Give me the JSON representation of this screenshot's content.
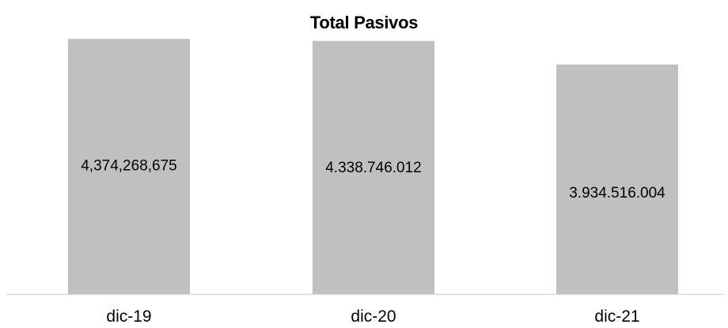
{
  "chart_data": {
    "type": "bar",
    "title": "Total Pasivos",
    "xlabel": "",
    "ylabel": "",
    "categories": [
      "dic-19",
      "dic-20",
      "dic-21"
    ],
    "values": [
      4374268675,
      4338746012,
      3934516004
    ],
    "data_labels": [
      "4,374,268,675",
      "4.338.746.012",
      "3.934.516.004"
    ],
    "ylim": [
      0,
      5000000000
    ],
    "grid": false,
    "legend": "none",
    "colors": {
      "bar": "#c0c0c0",
      "axis": "#d9d9d9"
    }
  }
}
